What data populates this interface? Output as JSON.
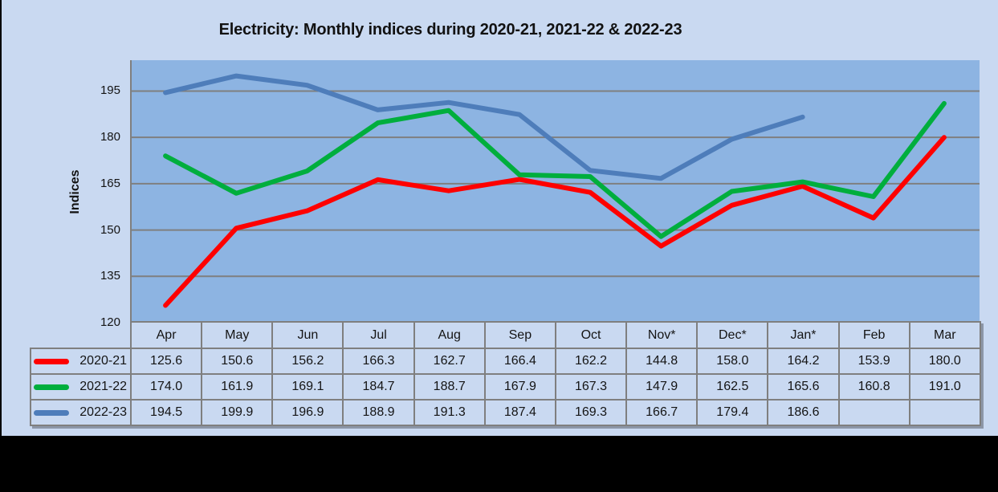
{
  "chart_data": {
    "type": "line",
    "title": "Electricity: Monthly indices during 2020-21, 2021-22 & 2022-23",
    "xlabel": "",
    "ylabel": "Indices",
    "categories": [
      "Apr",
      "May",
      "Jun",
      "Jul",
      "Aug",
      "Sep",
      "Oct",
      "Nov*",
      "Dec*",
      "Jan*",
      "Feb",
      "Mar"
    ],
    "series": [
      {
        "name": "2020-21",
        "color": "#fe0000",
        "values": [
          125.6,
          150.6,
          156.2,
          166.3,
          162.7,
          166.4,
          162.2,
          144.8,
          158.0,
          164.2,
          153.9,
          180.0
        ]
      },
      {
        "name": "2021-22",
        "color": "#00ae3d",
        "values": [
          174.0,
          161.9,
          169.1,
          184.7,
          188.7,
          167.9,
          167.3,
          147.9,
          162.5,
          165.6,
          160.8,
          191.0
        ]
      },
      {
        "name": "2022-23",
        "color": "#4e7dba",
        "values": [
          194.5,
          199.9,
          196.9,
          188.9,
          191.3,
          187.4,
          169.3,
          166.7,
          179.4,
          186.6,
          null,
          null
        ]
      }
    ],
    "y_ticks": [
      195,
      180,
      165,
      150,
      135,
      120
    ],
    "ylim": [
      120,
      205
    ],
    "grid": true,
    "legend_position": "data-table-left",
    "table_has_legend_keys": true
  },
  "style": {
    "sheet_bg": "#c9d9f1",
    "plot_bg": "#8db4e2",
    "grid_color": "#7f7f7f",
    "axis_color": "#7f7f7f",
    "text_color": "#141414",
    "outer_bg": "#000000"
  }
}
